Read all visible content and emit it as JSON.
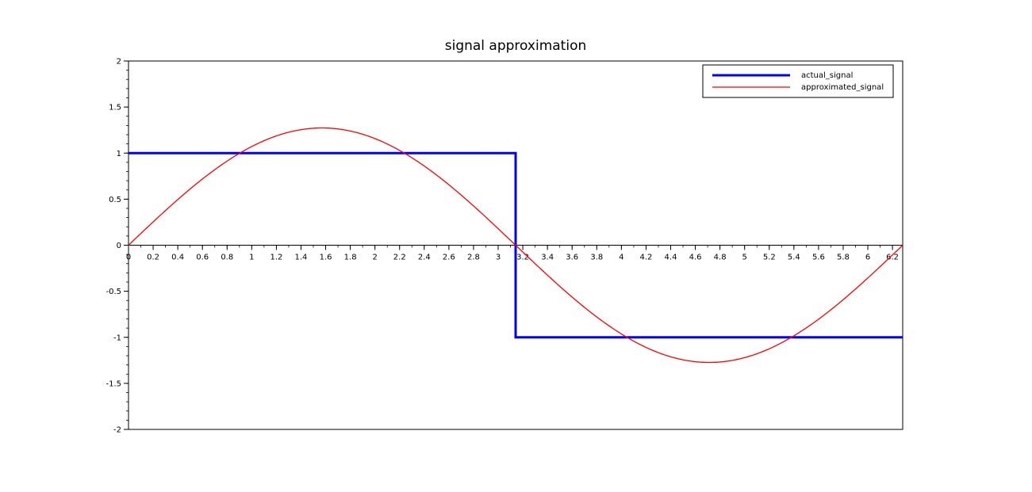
{
  "chart_data": {
    "type": "line",
    "title": "signal approximation",
    "xlabel": "",
    "ylabel": "",
    "xlim": [
      0,
      6.283
    ],
    "ylim": [
      -2,
      2
    ],
    "x_ticks": [
      "0",
      "0.2",
      "0.4",
      "0.6",
      "0.8",
      "1",
      "1.2",
      "1.4",
      "1.6",
      "1.8",
      "2",
      "2.2",
      "2.4",
      "2.6",
      "2.8",
      "3",
      "3.2",
      "3.4",
      "3.6",
      "3.8",
      "4",
      "4.2",
      "4.4",
      "4.6",
      "4.8",
      "5",
      "5.2",
      "5.4",
      "5.6",
      "5.8",
      "6",
      "6.2"
    ],
    "y_ticks": [
      "-2",
      "-1.5",
      "-1",
      "-0.5",
      "0",
      "0.5",
      "1",
      "1.5",
      "2"
    ],
    "x_axis_position": "y=0",
    "legend_position": "top-right",
    "grid": false,
    "series": [
      {
        "name": "actual_signal",
        "color": "#0000ff",
        "x": [
          0,
          3.1416,
          3.1416,
          6.283
        ],
        "y": [
          1,
          1,
          -1,
          -1
        ]
      },
      {
        "name": "approximated_signal",
        "color": "#ff0000",
        "x": [
          0,
          0.3927,
          0.7854,
          1.1781,
          1.5708,
          1.9635,
          2.3562,
          2.7489,
          3.1416,
          3.5343,
          3.927,
          4.3197,
          4.7124,
          5.1051,
          5.4978,
          5.8905,
          6.2832
        ],
        "y": [
          0,
          0.487,
          0.9,
          1.176,
          1.273,
          1.176,
          0.9,
          0.487,
          0,
          -0.487,
          -0.9,
          -1.176,
          -1.273,
          -1.176,
          -0.9,
          -0.487,
          0
        ]
      }
    ]
  }
}
